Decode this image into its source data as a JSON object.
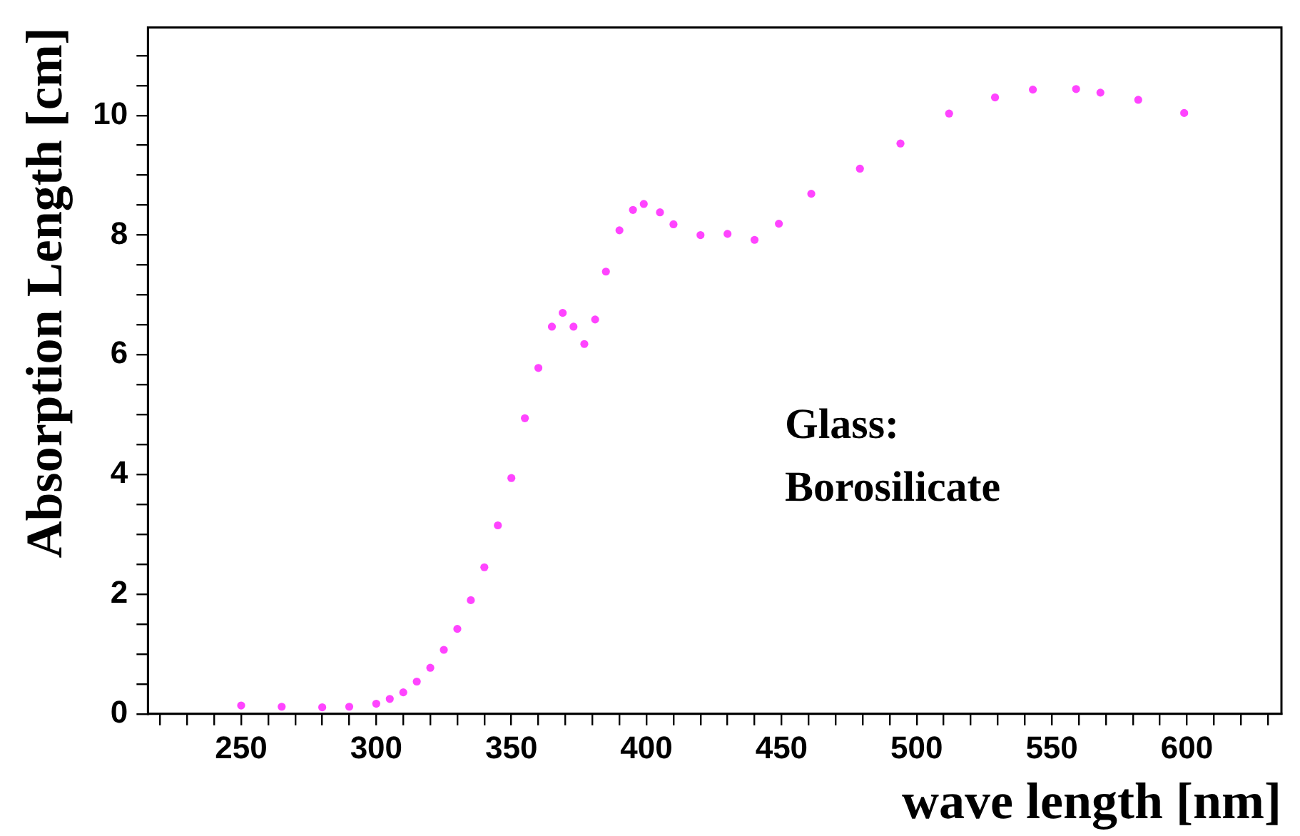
{
  "chart_data": {
    "type": "scatter",
    "xlabel": "wave length [nm]",
    "ylabel": "Absorption Length [cm]",
    "annotations": [
      "Glass:\nBorosilicate"
    ],
    "series": [
      {
        "color": "#ff44ff",
        "x": [
          250,
          265,
          280,
          290,
          300,
          305,
          310,
          315,
          320,
          325,
          330,
          335,
          340,
          345,
          350,
          355,
          360,
          365,
          369,
          373,
          377,
          381,
          385,
          390,
          395,
          399,
          405,
          410,
          420,
          430,
          440,
          449,
          461,
          479,
          494,
          512,
          529,
          543,
          559,
          568,
          582,
          599
        ],
        "values": [
          0.14,
          0.12,
          0.11,
          0.12,
          0.17,
          0.25,
          0.36,
          0.54,
          0.77,
          1.07,
          1.42,
          1.9,
          2.45,
          3.15,
          3.94,
          4.94,
          5.78,
          6.47,
          6.7,
          6.47,
          6.18,
          6.59,
          7.39,
          8.08,
          8.42,
          8.52,
          8.38,
          8.18,
          8.0,
          8.02,
          7.92,
          8.19,
          8.69,
          9.11,
          9.53,
          10.03,
          10.3,
          10.43,
          10.44,
          10.38,
          10.26,
          10.04
        ]
      }
    ],
    "marker": "circle",
    "grid": false,
    "legend": false,
    "xlim": [
      215.5,
      635
    ],
    "xticks": [
      {
        "value": 220,
        "label": null
      },
      {
        "value": 230,
        "label": null
      },
      {
        "value": 240,
        "label": null
      },
      250,
      {
        "value": 260,
        "label": null
      },
      {
        "value": 270,
        "label": null
      },
      {
        "value": 280,
        "label": null
      },
      {
        "value": 290,
        "label": null
      },
      300,
      {
        "value": 310,
        "label": null
      },
      {
        "value": 320,
        "label": null
      },
      {
        "value": 330,
        "label": null
      },
      {
        "value": 340,
        "label": null
      },
      350,
      {
        "value": 360,
        "label": null
      },
      {
        "value": 370,
        "label": null
      },
      {
        "value": 380,
        "label": null
      },
      {
        "value": 390,
        "label": null
      },
      400,
      {
        "value": 410,
        "label": null
      },
      {
        "value": 420,
        "label": null
      },
      {
        "value": 430,
        "label": null
      },
      {
        "value": 440,
        "label": null
      },
      450,
      {
        "value": 460,
        "label": null
      },
      {
        "value": 470,
        "label": null
      },
      {
        "value": 480,
        "label": null
      },
      {
        "value": 490,
        "label": null
      },
      500,
      {
        "value": 510,
        "label": null
      },
      {
        "value": 520,
        "label": null
      },
      {
        "value": 530,
        "label": null
      },
      {
        "value": 540,
        "label": null
      },
      550,
      {
        "value": 560,
        "label": null
      },
      {
        "value": 570,
        "label": null
      },
      {
        "value": 580,
        "label": null
      },
      {
        "value": 590,
        "label": null
      },
      600,
      {
        "value": 610,
        "label": null
      },
      {
        "value": 620,
        "label": null
      },
      {
        "value": 630,
        "label": null
      }
    ],
    "ylim": [
      0,
      11.47
    ],
    "yticks": [
      0,
      {
        "value": 0.5,
        "label": null
      },
      {
        "value": 1,
        "label": null
      },
      {
        "value": 1.5,
        "label": null
      },
      2,
      {
        "value": 2.5,
        "label": null
      },
      {
        "value": 3,
        "label": null
      },
      {
        "value": 3.5,
        "label": null
      },
      4,
      {
        "value": 4.5,
        "label": null
      },
      {
        "value": 5,
        "label": null
      },
      {
        "value": 5.5,
        "label": null
      },
      6,
      {
        "value": 6.5,
        "label": null
      },
      {
        "value": 7,
        "label": null
      },
      {
        "value": 7.5,
        "label": null
      },
      8,
      {
        "value": 8.5,
        "label": null
      },
      {
        "value": 9,
        "label": null
      },
      {
        "value": 9.5,
        "label": null
      },
      10,
      {
        "value": 10.5,
        "label": null
      },
      {
        "value": 11,
        "label": null
      }
    ]
  }
}
